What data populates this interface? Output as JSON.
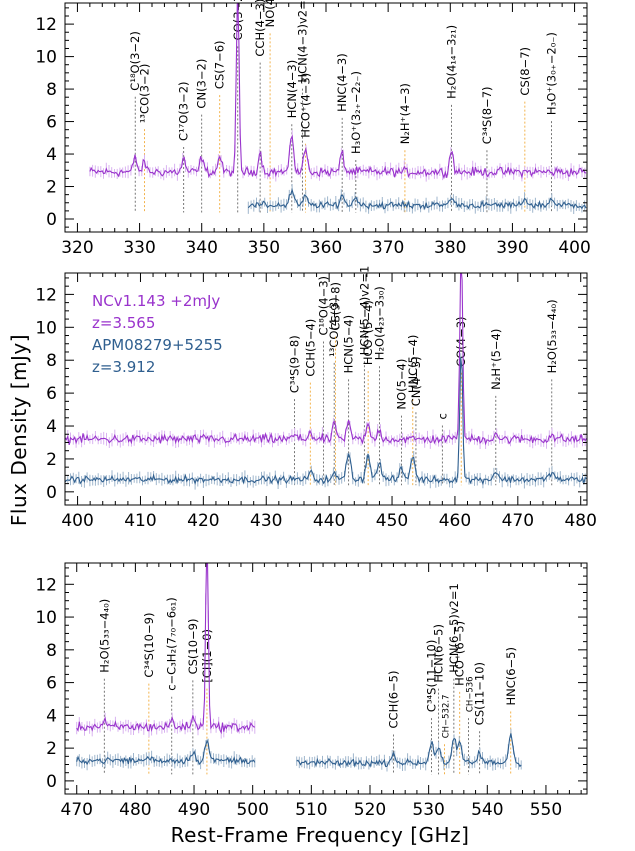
{
  "figure": {
    "ylabel": "Flux Density [mJy]",
    "xlabel": "Rest-Frame Frequency [GHz]"
  },
  "colors": {
    "nc": "#9933cc",
    "apm": "#2f5f8f",
    "marker_nc": "#f0a020",
    "marker_apm": "#555555"
  },
  "legend": {
    "nc_name": "NCv1.143 +2mJy",
    "nc_z": "z=3.565",
    "apm_name": "APM08279+5255",
    "apm_z": "z=3.912"
  },
  "chart_data": [
    {
      "type": "line",
      "xlim": [
        318,
        402
      ],
      "ylim": [
        -0.8,
        13.3
      ],
      "xticks": [
        320,
        330,
        340,
        350,
        360,
        370,
        380,
        390,
        400
      ],
      "yticks": [
        0,
        2,
        4,
        6,
        8,
        10,
        12
      ],
      "series": [
        {
          "name": "NCv1.143 +2mJy",
          "x_range": [
            322,
            402
          ],
          "baseline": 2.9,
          "lines": [
            [
              329.3,
              0.9
            ],
            [
              330.8,
              0.6
            ],
            [
              337.1,
              0.8
            ],
            [
              340.0,
              0.9
            ],
            [
              342.9,
              1.0
            ],
            [
              345.8,
              11.2
            ],
            [
              349.4,
              1.2
            ],
            [
              354.5,
              2.4
            ],
            [
              356.7,
              1.5
            ],
            [
              362.6,
              1.2
            ],
            [
              380.2,
              1.4
            ]
          ]
        },
        {
          "name": "APM08279+5255",
          "x_range": [
            347.5,
            402
          ],
          "baseline": 0.85,
          "lines": [
            [
              354.5,
              0.9
            ],
            [
              356.7,
              0.5
            ],
            [
              362.6,
              0.6
            ],
            [
              364.8,
              0.5
            ],
            [
              380.2,
              0.5
            ],
            [
              392.0,
              0.4
            ],
            [
              396.3,
              0.4
            ]
          ]
        }
      ],
      "annotations": [
        {
          "text": "C¹⁸O(3−2)",
          "x": 329.3,
          "y": 7.9
        },
        {
          "text": "¹³CO(3−2)",
          "x": 330.8,
          "y": 5.9
        },
        {
          "text": "C¹⁷O(3−2)",
          "x": 337.1,
          "y": 4.8
        },
        {
          "text": "CN(3−2)",
          "x": 340.0,
          "y": 6.8
        },
        {
          "text": "CS(7−6)",
          "x": 342.9,
          "y": 8.0
        },
        {
          "text": "CO(3−2)",
          "x": 345.8,
          "y": 11.0
        },
        {
          "text": "CCH(4−3)",
          "x": 349.4,
          "y": 10.0
        },
        {
          "text": "NO(4−3)",
          "x": 351.0,
          "y": 11.8
        },
        {
          "text": "HCN(4−3)",
          "x": 354.5,
          "y": 6.2
        },
        {
          "text": "HCN(4−3)v2=1",
          "x": 356.2,
          "y": 8.4
        },
        {
          "text": "HCO⁺(4−3)",
          "x": 356.7,
          "y": 5.0
        },
        {
          "text": "HNC(4−3)",
          "x": 362.6,
          "y": 6.6
        },
        {
          "text": "H₃O⁺(3₂₊−2₂₋)",
          "x": 364.8,
          "y": 4.0
        },
        {
          "text": "N₂H⁺(4−3)",
          "x": 372.7,
          "y": 4.6
        },
        {
          "text": "H₂O(4₁₄−3₂₁)",
          "x": 380.2,
          "y": 7.4
        },
        {
          "text": "C³⁴S(8−7)",
          "x": 385.9,
          "y": 4.6
        },
        {
          "text": "CS(8−7)",
          "x": 392.0,
          "y": 7.6
        },
        {
          "text": "H₃O⁺(3₀₊−2₀₋)",
          "x": 396.3,
          "y": 6.4
        }
      ]
    },
    {
      "type": "line",
      "xlim": [
        398,
        481
      ],
      "ylim": [
        -0.8,
        13.3
      ],
      "xticks": [
        400,
        410,
        420,
        430,
        440,
        450,
        460,
        470,
        480
      ],
      "yticks": [
        0,
        2,
        4,
        6,
        8,
        10,
        12
      ],
      "series": [
        {
          "name": "NCv1.143 +2mJy",
          "x_range": [
            398,
            481
          ],
          "baseline": 3.2,
          "lines": [
            [
              434.5,
              0.3
            ],
            [
              437.0,
              0.5
            ],
            [
              440.9,
              1.0
            ],
            [
              443.1,
              1.0
            ],
            [
              446.2,
              0.8
            ],
            [
              448.0,
              0.6
            ],
            [
              461.0,
              11.5
            ],
            [
              466.5,
              0.4
            ],
            [
              475.4,
              0.3
            ]
          ]
        },
        {
          "name": "APM08279+5255",
          "x_range": [
            398,
            481
          ],
          "baseline": 0.75,
          "lines": [
            [
              437.0,
              0.4
            ],
            [
              440.9,
              0.3
            ],
            [
              443.1,
              1.6
            ],
            [
              446.2,
              1.5
            ],
            [
              448.0,
              1.0
            ],
            [
              451.5,
              0.6
            ],
            [
              453.3,
              1.4
            ],
            [
              461.0,
              8.0
            ],
            [
              466.5,
              0.5
            ],
            [
              475.4,
              0.5
            ]
          ]
        }
      ],
      "annotations": [
        {
          "text": "C³⁴S(9−8)",
          "x": 434.5,
          "y": 6.0
        },
        {
          "text": "CCH(5−4)",
          "x": 437.0,
          "y": 7.0
        },
        {
          "text": "C¹⁸O(4−3)",
          "x": 439.1,
          "y": 9.5
        },
        {
          "text": "¹³CO(4−3)",
          "x": 440.8,
          "y": 8.2
        },
        {
          "text": "CS(9−8)",
          "x": 441.0,
          "y": 9.8
        },
        {
          "text": "HCN(5−4)",
          "x": 443.1,
          "y": 7.2
        },
        {
          "text": "HCN(5−4)v2=1",
          "x": 445.6,
          "y": 8.3
        },
        {
          "text": "HCO⁺(5−4)",
          "x": 446.2,
          "y": 7.7
        },
        {
          "text": "H₂O(4₂₃−3₃₀)",
          "x": 448.0,
          "y": 8.0
        },
        {
          "text": "NO(5−4)",
          "x": 451.5,
          "y": 5.0
        },
        {
          "text": "HNC(5−4)",
          "x": 453.3,
          "y": 6.0
        },
        {
          "text": "CN(4−3)",
          "x": 453.8,
          "y": 5.2
        },
        {
          "text": "c",
          "x": 458.0,
          "y": 4.4
        },
        {
          "text": "CO(4−3)",
          "x": 461.0,
          "y": 7.6
        },
        {
          "text": "N₂H⁺(5−4)",
          "x": 466.5,
          "y": 6.2
        },
        {
          "text": "H₂O(5₃₃−4₄₀)",
          "x": 475.4,
          "y": 7.2
        }
      ],
      "legend_position": "top-left"
    },
    {
      "type": "line",
      "xlim": [
        468,
        557
      ],
      "ylim": [
        -0.8,
        13.3
      ],
      "xticks": [
        470,
        480,
        490,
        500,
        510,
        520,
        530,
        540,
        550
      ],
      "yticks": [
        0,
        2,
        4,
        6,
        8,
        10,
        12
      ],
      "series": [
        {
          "name": "NCv1.143 +2mJy",
          "x_range": [
            470,
            500.5
          ],
          "baseline": 3.3,
          "lines": [
            [
              474.7,
              0.3
            ],
            [
              486.2,
              0.4
            ],
            [
              489.8,
              0.6
            ],
            [
              492.2,
              12.0
            ]
          ]
        },
        {
          "name": "APM08279+5255",
          "x_range": [
            470,
            500.5
          ],
          "baseline": 1.25,
          "lines": [
            [
              482.3,
              0.2
            ],
            [
              489.8,
              0.5
            ],
            [
              492.2,
              1.2
            ]
          ]
        },
        {
          "name": "APM08279+5255",
          "x_range": [
            507.5,
            546
          ],
          "baseline": 1.1,
          "lines": [
            [
              524.0,
              0.6
            ],
            [
              530.5,
              1.3
            ],
            [
              531.7,
              1.0
            ],
            [
              534.3,
              1.4
            ],
            [
              535.3,
              1.2
            ],
            [
              538.7,
              0.6
            ],
            [
              544.0,
              1.8
            ]
          ]
        }
      ],
      "annotations": [
        {
          "text": "H₂O(5₃₃−4₄₀)",
          "x": 474.7,
          "y": 6.6
        },
        {
          "text": "C³⁴S(10−9)",
          "x": 482.3,
          "y": 6.3
        },
        {
          "text": "c−C₃H₂(7₇₀−6₆₁)",
          "x": 486.2,
          "y": 5.5
        },
        {
          "text": "CS(10−9)",
          "x": 489.8,
          "y": 6.5
        },
        {
          "text": "[CI](1−0)",
          "x": 492.2,
          "y": 6.0
        },
        {
          "text": "CCH(6−5)",
          "x": 524.0,
          "y": 3.2
        },
        {
          "text": "C³⁴S(11−10)",
          "x": 530.5,
          "y": 4.2
        },
        {
          "text": "CH−532.7",
          "x": 532.7,
          "y": 2.6
        },
        {
          "text": "HCN(6−5)",
          "x": 531.7,
          "y": 6.0
        },
        {
          "text": "HCN(6−5)v2=1",
          "x": 534.3,
          "y": 6.6
        },
        {
          "text": "HCO⁺(6−5)",
          "x": 535.3,
          "y": 5.8
        },
        {
          "text": "CH−536",
          "x": 536.8,
          "y": 4.2
        },
        {
          "text": "CS(11−10)",
          "x": 538.7,
          "y": 3.4
        },
        {
          "text": "HNC(6−5)",
          "x": 544.0,
          "y": 4.6
        }
      ]
    }
  ]
}
